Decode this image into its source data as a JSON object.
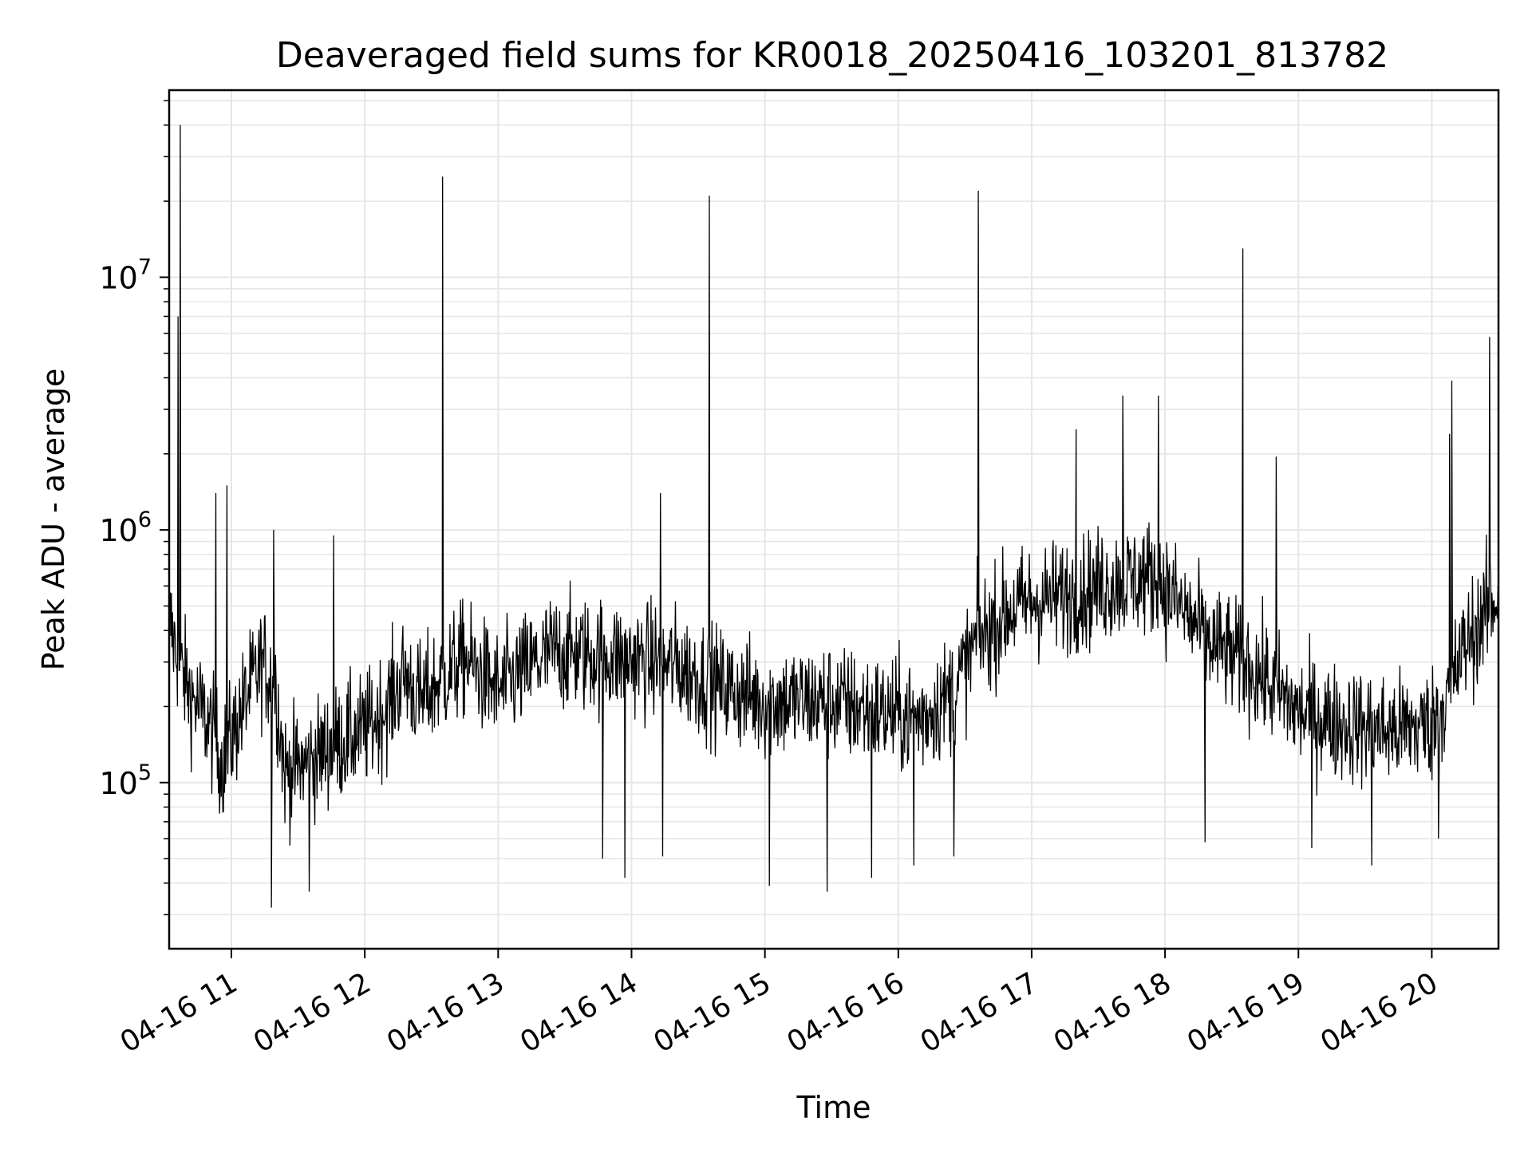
{
  "chart_data": {
    "type": "line",
    "title": "Deaveraged field sums for KR0018_20250416_103201_813782",
    "xlabel": "Time",
    "ylabel": "Peak ADU - average",
    "yscale": "log",
    "ylim": [
      22000,
      55000000
    ],
    "xlim": [
      "2025-04-16 10:32",
      "2025-04-16 20:30"
    ],
    "grid": true,
    "colors": {
      "line": "#000000",
      "grid": "#e6e6e6",
      "axes": "#000000"
    },
    "x_ticks": [
      {
        "t": "2025-04-16 11:00",
        "label": "04-16 11"
      },
      {
        "t": "2025-04-16 12:00",
        "label": "04-16 12"
      },
      {
        "t": "2025-04-16 13:00",
        "label": "04-16 13"
      },
      {
        "t": "2025-04-16 14:00",
        "label": "04-16 14"
      },
      {
        "t": "2025-04-16 15:00",
        "label": "04-16 15"
      },
      {
        "t": "2025-04-16 16:00",
        "label": "04-16 16"
      },
      {
        "t": "2025-04-16 17:00",
        "label": "04-16 17"
      },
      {
        "t": "2025-04-16 18:00",
        "label": "04-16 18"
      },
      {
        "t": "2025-04-16 19:00",
        "label": "04-16 19"
      },
      {
        "t": "2025-04-16 20:00",
        "label": "04-16 20"
      }
    ],
    "y_ticks": [
      {
        "value": 100000,
        "base": "10",
        "exp": "5"
      },
      {
        "value": 1000000,
        "base": "10",
        "exp": "6"
      },
      {
        "value": 10000000,
        "base": "10",
        "exp": "7"
      }
    ],
    "baseline": [
      [
        "2025-04-16 10:32",
        450000
      ],
      [
        "2025-04-16 10:36",
        300000
      ],
      [
        "2025-04-16 10:42",
        220000
      ],
      [
        "2025-04-16 10:50",
        170000
      ],
      [
        "2025-04-16 10:56",
        120000
      ],
      [
        "2025-04-16 11:00",
        150000
      ],
      [
        "2025-04-16 11:08",
        230000
      ],
      [
        "2025-04-16 11:14",
        300000
      ],
      [
        "2025-04-16 11:20",
        240000
      ],
      [
        "2025-04-16 11:24",
        110000
      ],
      [
        "2025-04-16 11:35",
        120000
      ],
      [
        "2025-04-16 11:45",
        140000
      ],
      [
        "2025-04-16 12:00",
        160000
      ],
      [
        "2025-04-16 12:10",
        200000
      ],
      [
        "2025-04-16 12:18",
        270000
      ],
      [
        "2025-04-16 12:25",
        210000
      ],
      [
        "2025-04-16 12:35",
        260000
      ],
      [
        "2025-04-16 12:45",
        310000
      ],
      [
        "2025-04-16 13:00",
        230000
      ],
      [
        "2025-04-16 13:10",
        270000
      ],
      [
        "2025-04-16 13:25",
        330000
      ],
      [
        "2025-04-16 13:40",
        320000
      ],
      [
        "2025-04-16 14:00",
        310000
      ],
      [
        "2025-04-16 14:20",
        290000
      ],
      [
        "2025-04-16 14:40",
        240000
      ],
      [
        "2025-04-16 15:00",
        210000
      ],
      [
        "2025-04-16 15:30",
        210000
      ],
      [
        "2025-04-16 15:50",
        190000
      ],
      [
        "2025-04-16 16:10",
        180000
      ],
      [
        "2025-04-16 16:25",
        230000
      ],
      [
        "2025-04-16 16:35",
        360000
      ],
      [
        "2025-04-16 16:50",
        480000
      ],
      [
        "2025-04-16 17:00",
        520000
      ],
      [
        "2025-04-16 17:20",
        560000
      ],
      [
        "2025-04-16 17:40",
        630000
      ],
      [
        "2025-04-16 17:55",
        650000
      ],
      [
        "2025-04-16 18:05",
        520000
      ],
      [
        "2025-04-16 18:20",
        360000
      ],
      [
        "2025-04-16 18:40",
        280000
      ],
      [
        "2025-04-16 19:00",
        190000
      ],
      [
        "2025-04-16 19:20",
        170000
      ],
      [
        "2025-04-16 19:40",
        160000
      ],
      [
        "2025-04-16 20:00",
        170000
      ],
      [
        "2025-04-16 20:08",
        230000
      ],
      [
        "2025-04-16 20:15",
        350000
      ],
      [
        "2025-04-16 20:30",
        550000
      ]
    ],
    "noise_spread_decades": 0.4,
    "spikes_up": [
      [
        "2025-04-16 10:37",
        40000000
      ],
      [
        "2025-04-16 10:36",
        7000000
      ],
      [
        "2025-04-16 12:35",
        25000000
      ],
      [
        "2025-04-16 14:35",
        21000000
      ],
      [
        "2025-04-16 16:36",
        22000000
      ],
      [
        "2025-04-16 18:35",
        13000000
      ],
      [
        "2025-04-16 20:26",
        5800000
      ],
      [
        "2025-04-16 20:09",
        3900000
      ],
      [
        "2025-04-16 20:08",
        2400000
      ],
      [
        "2025-04-16 17:41",
        3400000
      ],
      [
        "2025-04-16 17:57",
        3400000
      ],
      [
        "2025-04-16 17:20",
        2500000
      ],
      [
        "2025-04-16 18:50",
        1950000
      ],
      [
        "2025-04-16 14:13",
        1400000
      ],
      [
        "2025-04-16 10:58",
        1500000
      ],
      [
        "2025-04-16 10:53",
        1400000
      ],
      [
        "2025-04-16 11:19",
        1000000
      ],
      [
        "2025-04-16 11:46",
        950000
      ]
    ],
    "spikes_down": [
      [
        "2025-04-16 11:18",
        32000
      ],
      [
        "2025-04-16 11:35",
        37000
      ],
      [
        "2025-04-16 13:57",
        42000
      ],
      [
        "2025-04-16 15:02",
        39000
      ],
      [
        "2025-04-16 15:28",
        37000
      ],
      [
        "2025-04-16 15:48",
        42000
      ],
      [
        "2025-04-16 16:07",
        47000
      ],
      [
        "2025-04-16 19:33",
        47000
      ],
      [
        "2025-04-16 13:47",
        50000
      ],
      [
        "2025-04-16 14:14",
        51000
      ],
      [
        "2025-04-16 16:25",
        51000
      ],
      [
        "2025-04-16 19:06",
        55000
      ],
      [
        "2025-04-16 20:03",
        60000
      ],
      [
        "2025-04-16 18:18",
        58000
      ]
    ]
  }
}
